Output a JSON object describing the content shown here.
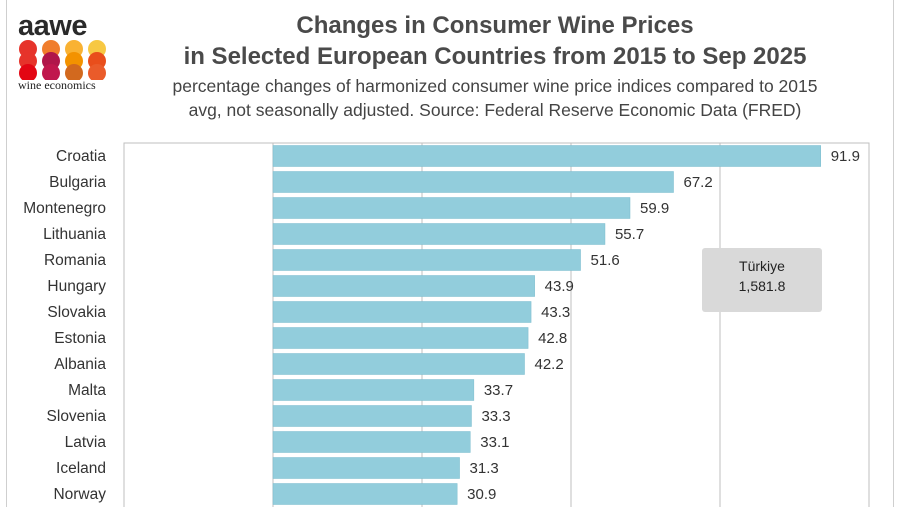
{
  "logo": {
    "name": "aawe",
    "tagline": "wine economics",
    "dot_colors": [
      "#e6332a",
      "#f07d2c",
      "#f9b233",
      "#f7c843",
      "#e6332a",
      "#b0164a",
      "#f39200",
      "#e94e1b",
      "#e30613",
      "#c0174d",
      "#d2691e",
      "#ea5b2a"
    ]
  },
  "title_line1": "Changes in Consumer Wine Prices",
  "title_line2": "in Selected European Countries from 2015 to Sep 2025",
  "subtitle_line1": "percentage changes of harmonized consumer wine price indices compared to 2015",
  "subtitle_line2": "avg, not seasonally adjusted. Source: Federal Reserve Economic Data (FRED)",
  "annotation": {
    "label": "Türkiye",
    "value": "1,581.8"
  },
  "colors": {
    "bar": "#92cddc",
    "bar_stroke": "#7bbccd",
    "grid": "#bfbfbf",
    "text": "#333333"
  },
  "chart_data": {
    "type": "bar",
    "orientation": "horizontal",
    "categories": [
      "Croatia",
      "Bulgaria",
      "Montenegro",
      "Lithuania",
      "Romania",
      "Hungary",
      "Slovakia",
      "Estonia",
      "Albania",
      "Malta",
      "Slovenia",
      "Latvia",
      "Iceland",
      "Norway"
    ],
    "values": [
      91.9,
      67.2,
      59.9,
      55.7,
      51.6,
      43.9,
      43.3,
      42.8,
      42.2,
      33.7,
      33.3,
      33.1,
      31.3,
      30.9
    ],
    "labels": [
      "91.9",
      "67.2",
      "59.9",
      "55.7",
      "51.6",
      "43.9",
      "43.3",
      "42.8",
      "42.2",
      "33.7",
      "33.3",
      "33.1",
      "31.3",
      "30.9"
    ],
    "xlim": [
      -25,
      100
    ],
    "gridlines": [
      0,
      25,
      50,
      75,
      100
    ],
    "grid": true,
    "title": "Changes in Consumer Wine Prices in Selected European Countries from 2015 to Sep 2025",
    "xlabel": "",
    "ylabel": ""
  }
}
